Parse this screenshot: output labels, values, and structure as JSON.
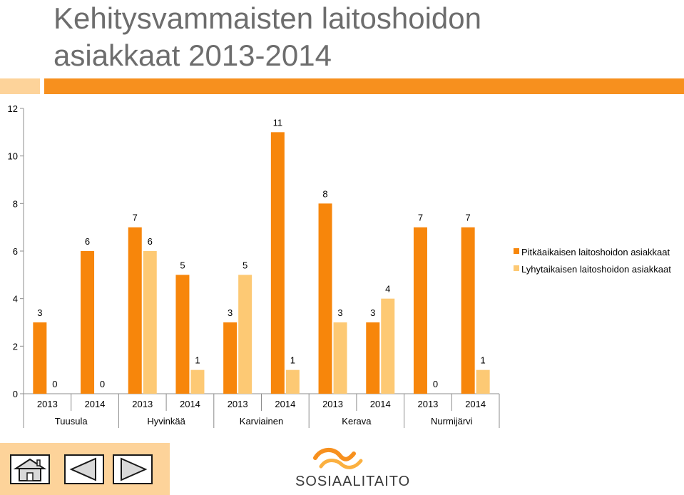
{
  "title_line1": "Kehitysvammaisten laitoshoidon",
  "title_line2": "asiakkaat 2013-2014",
  "colors": {
    "accent": "#f7901e",
    "light": "#fdd39a",
    "series1": "#f7860b",
    "series2": "#fdc974"
  },
  "chart_data": {
    "type": "bar",
    "groups": [
      "Tuusula",
      "Hyvinkää",
      "Karviainen",
      "Kerava",
      "Nurmijärvi"
    ],
    "categories": [
      "2013",
      "2014",
      "2013",
      "2014",
      "2013",
      "2014",
      "2013",
      "2014",
      "2013",
      "2014"
    ],
    "series": [
      {
        "name": "Pitkäaikaisen laitoshoidon asiakkaat",
        "values": [
          3,
          6,
          7,
          5,
          3,
          11,
          8,
          3,
          7,
          7
        ]
      },
      {
        "name": "Lyhytaikaisen laitoshoidon asiakkaat",
        "values": [
          0,
          0,
          6,
          1,
          5,
          1,
          3,
          4,
          0,
          1
        ]
      }
    ],
    "yticks": [
      "0",
      "2",
      "4",
      "6",
      "8",
      "10",
      "12"
    ],
    "ylim": [
      0,
      12
    ],
    "legend": "right",
    "grid": false
  },
  "nav": {
    "home": "home-icon",
    "prev": "triangle-left-icon",
    "next": "triangle-right-icon"
  },
  "logo_text": "SOSIAALITAITO"
}
